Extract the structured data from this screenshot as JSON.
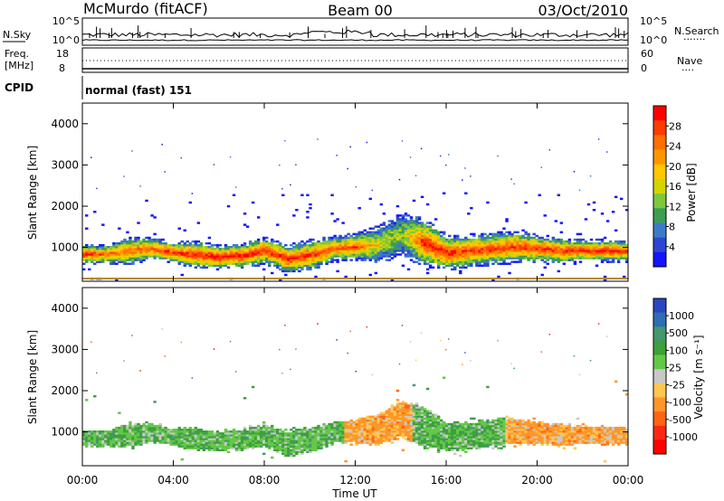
{
  "header": {
    "station": "McMurdo (fitACF)",
    "beam": "Beam 00",
    "date": "03/Oct/2010"
  },
  "panels": {
    "nsky": {
      "left_label": "N.Sky",
      "right_label": "N.Search",
      "right_marker": "·······",
      "tick_top": "10^5",
      "tick_bottom": "10^0"
    },
    "freq": {
      "left_label_1": "Freq.",
      "left_label_2": "[MHz]",
      "right_label": "Nave",
      "right_marker": "····",
      "left_ticks": [
        "18",
        "8"
      ],
      "right_ticks": [
        "60",
        "0"
      ]
    },
    "cpid": {
      "left_label": "CPID",
      "text": "normal (fast) 151"
    }
  },
  "chart_data": [
    {
      "type": "heatmap",
      "name": "power",
      "ylabel": "Slant Range [km]",
      "ylim": [
        180,
        4500
      ],
      "yticks": [
        1000,
        2000,
        3000,
        4000
      ],
      "xlim": [
        0,
        24
      ],
      "colorbar": {
        "label": "Power [dB]",
        "ticks": [
          "28",
          "24",
          "20",
          "16",
          "12",
          "8",
          "4"
        ],
        "colors": [
          "#ff0000",
          "#ff3b00",
          "#ff6e00",
          "#ff9600",
          "#ffc800",
          "#d4d400",
          "#7ec83c",
          "#3c9e50",
          "#3c7ac8",
          "#2d46d2",
          "#1414ff"
        ]
      },
      "echo_band": [
        {
          "t": 0,
          "center": 820,
          "half": 180,
          "level": 0.9
        },
        {
          "t": 1,
          "center": 820,
          "half": 170,
          "level": 0.8
        },
        {
          "t": 2,
          "center": 900,
          "half": 260,
          "level": 0.75
        },
        {
          "t": 3,
          "center": 950,
          "half": 200,
          "level": 0.8
        },
        {
          "t": 4,
          "center": 850,
          "half": 200,
          "level": 0.85
        },
        {
          "t": 5,
          "center": 800,
          "half": 250,
          "level": 0.9
        },
        {
          "t": 6,
          "center": 750,
          "half": 220,
          "level": 0.95
        },
        {
          "t": 7,
          "center": 780,
          "half": 220,
          "level": 0.95
        },
        {
          "t": 8,
          "center": 900,
          "half": 250,
          "level": 0.85
        },
        {
          "t": 9,
          "center": 700,
          "half": 260,
          "level": 0.9
        },
        {
          "t": 10,
          "center": 800,
          "half": 280,
          "level": 0.85
        },
        {
          "t": 11,
          "center": 950,
          "half": 230,
          "level": 0.8
        },
        {
          "t": 12,
          "center": 1000,
          "half": 250,
          "level": 0.8
        },
        {
          "t": 13,
          "center": 1050,
          "half": 350,
          "level": 0.5
        },
        {
          "t": 14,
          "center": 1300,
          "half": 400,
          "level": 0.4
        },
        {
          "t": 15,
          "center": 1100,
          "half": 450,
          "level": 0.9
        },
        {
          "t": 16,
          "center": 850,
          "half": 320,
          "level": 0.9
        },
        {
          "t": 17,
          "center": 900,
          "half": 300,
          "level": 0.85
        },
        {
          "t": 18,
          "center": 950,
          "half": 300,
          "level": 0.85
        },
        {
          "t": 19,
          "center": 1000,
          "half": 300,
          "level": 0.85
        },
        {
          "t": 20,
          "center": 950,
          "half": 250,
          "level": 0.85
        },
        {
          "t": 21,
          "center": 900,
          "half": 240,
          "level": 0.85
        },
        {
          "t": 22,
          "center": 900,
          "half": 200,
          "level": 0.9
        },
        {
          "t": 23,
          "center": 900,
          "half": 200,
          "level": 0.9
        },
        {
          "t": 24,
          "center": 880,
          "half": 190,
          "level": 0.85
        }
      ]
    },
    {
      "type": "heatmap",
      "name": "velocity",
      "ylabel": "Slant Range [km]",
      "ylim": [
        180,
        4500
      ],
      "yticks": [
        1000,
        2000,
        3000,
        4000
      ],
      "xlim": [
        0,
        24
      ],
      "xlabel": "Time UT",
      "xticks": [
        "00:00",
        "04:00",
        "08:00",
        "12:00",
        "16:00",
        "20:00",
        "00:00"
      ],
      "colorbar": {
        "label": "Velocity [m s⁻¹]",
        "ticks": [
          "1000",
          "500",
          "100",
          "25",
          "-25",
          "-100",
          "-500",
          "-1000"
        ],
        "colors": [
          "#2846be",
          "#2d6eb4",
          "#46966e",
          "#3ca03c",
          "#64c846",
          "#c8c8c8",
          "#ffc850",
          "#ff9628",
          "#ff6414",
          "#ff2814",
          "#ff0000"
        ]
      },
      "regimes": [
        {
          "from": 0,
          "to": 11.5,
          "velocity": "25 to 500"
        },
        {
          "from": 11.5,
          "to": 14.5,
          "velocity": "-100 to -500"
        },
        {
          "from": 14.5,
          "to": 18.5,
          "velocity": "25 to 500"
        },
        {
          "from": 18.5,
          "to": 24,
          "velocity": "-100 to -500"
        }
      ]
    }
  ],
  "time_ticks": [
    "00:00",
    "04:00",
    "08:00",
    "12:00",
    "16:00",
    "20:00",
    "00:00"
  ],
  "xlabel": "Time UT"
}
